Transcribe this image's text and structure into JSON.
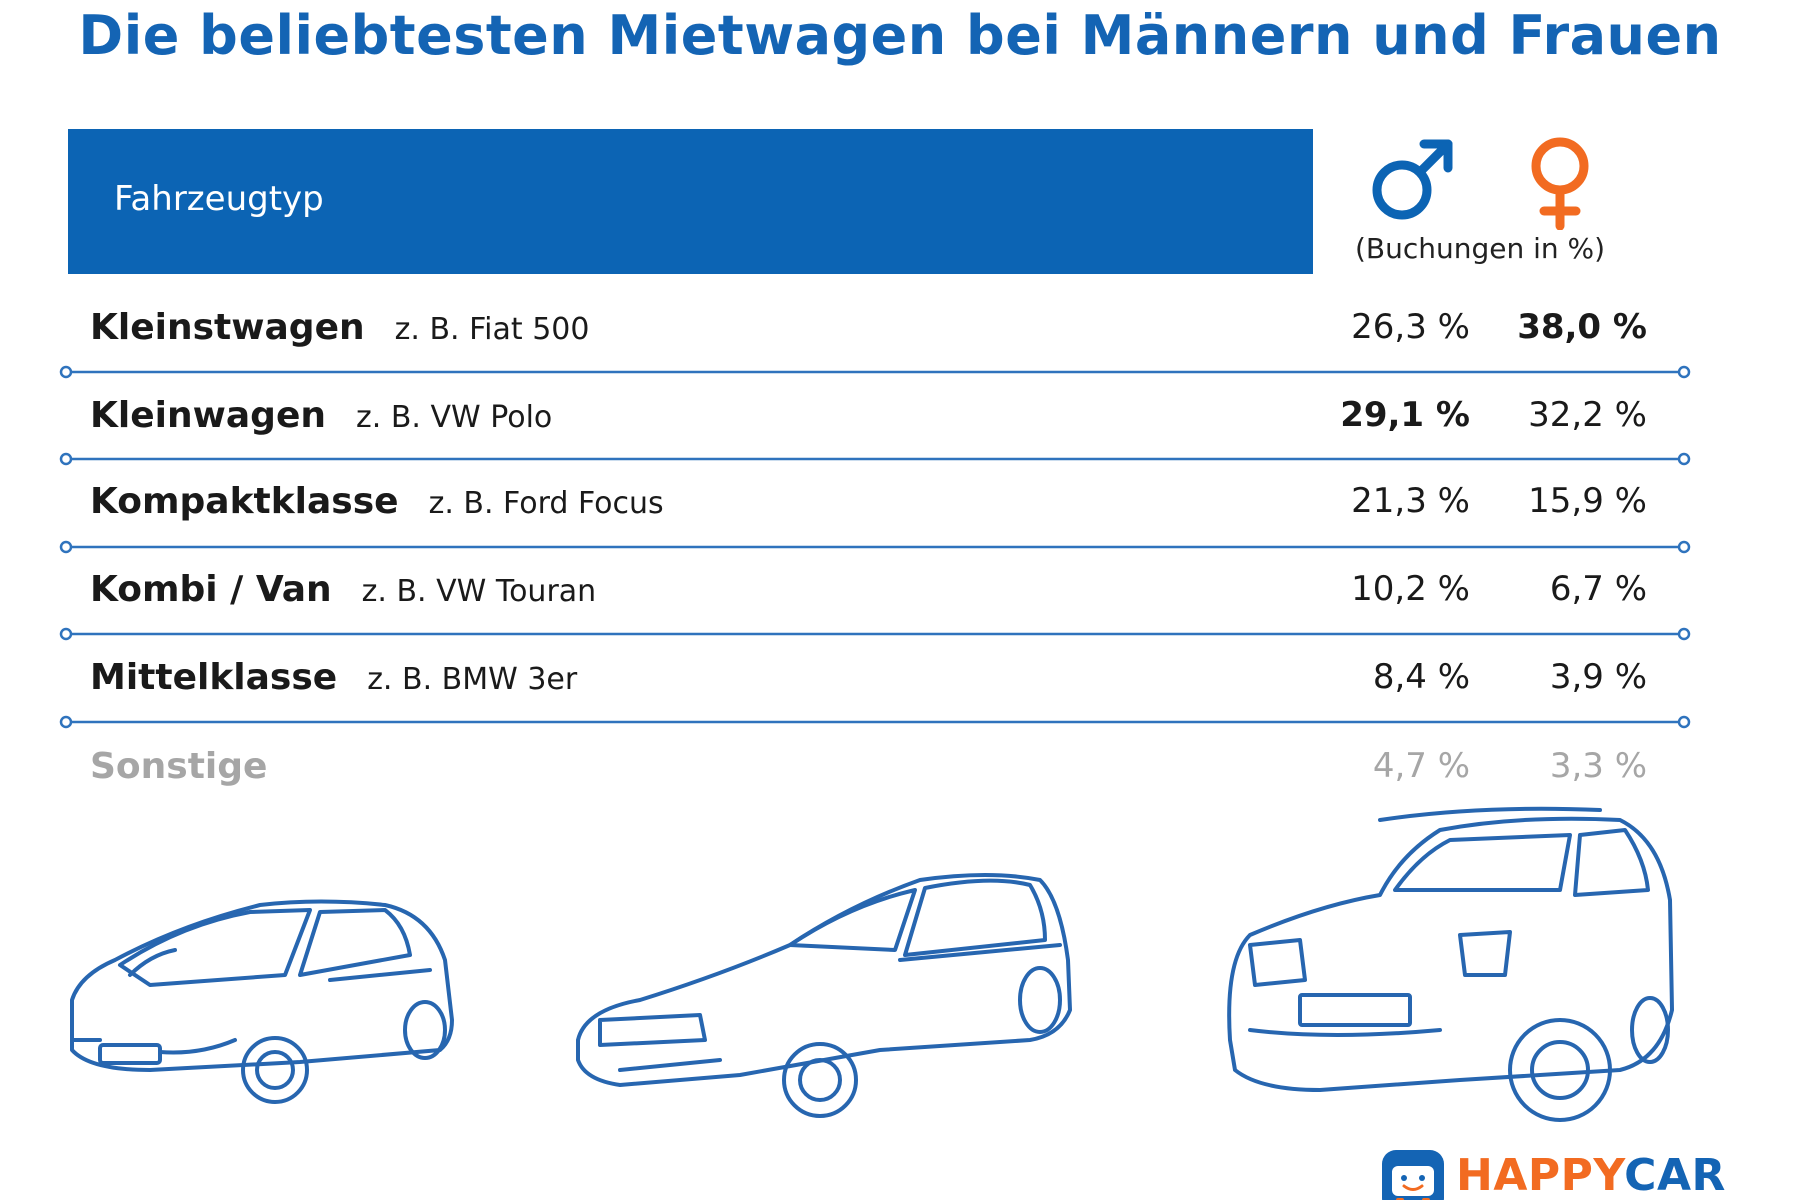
{
  "title": "Die beliebtesten Mietwagen bei Männern und Frauen",
  "colors": {
    "brand_blue": "#0c64b4",
    "female_orange": "#f26b21",
    "muted_grey": "#a6a6a6"
  },
  "header": {
    "column_label": "Fahrzeugtyp",
    "male_symbol": "male-symbol-icon",
    "female_symbol": "female-symbol-icon",
    "unit_label": "(Buchungen in %)"
  },
  "chart_data": {
    "type": "table",
    "columns": [
      "Fahrzeugtyp",
      "♂",
      "♀"
    ],
    "rows": [
      {
        "type": "Kleinstwagen",
        "example": "z. B. Fiat 500",
        "male": "26,3 %",
        "female": "38,0 %",
        "bold": "female"
      },
      {
        "type": "Kleinwagen",
        "example": "z. B. VW Polo",
        "male": "29,1 %",
        "female": "32,2 %",
        "bold": "male"
      },
      {
        "type": "Kompaktklasse",
        "example": "z. B. Ford Focus",
        "male": "21,3 %",
        "female": "15,9 %",
        "bold": ""
      },
      {
        "type": "Kombi / Van",
        "example": "z. B. VW Touran",
        "male": "10,2 %",
        "female": "6,7 %",
        "bold": ""
      },
      {
        "type": "Mittelklasse",
        "example": "z. B. BMW 3er",
        "male": "8,4 %",
        "female": "3,9 %",
        "bold": ""
      },
      {
        "type": "Sonstige",
        "example": "",
        "male": "4,7 %",
        "female": "3,3 %",
        "bold": "",
        "muted": true
      }
    ]
  },
  "illustrations": [
    "small-car-icon",
    "hatchback-car-icon",
    "suv-car-icon"
  ],
  "logo": {
    "icon": "happycar-logo-icon",
    "text_part1": "HAPPY",
    "text_part2": "CAR"
  }
}
